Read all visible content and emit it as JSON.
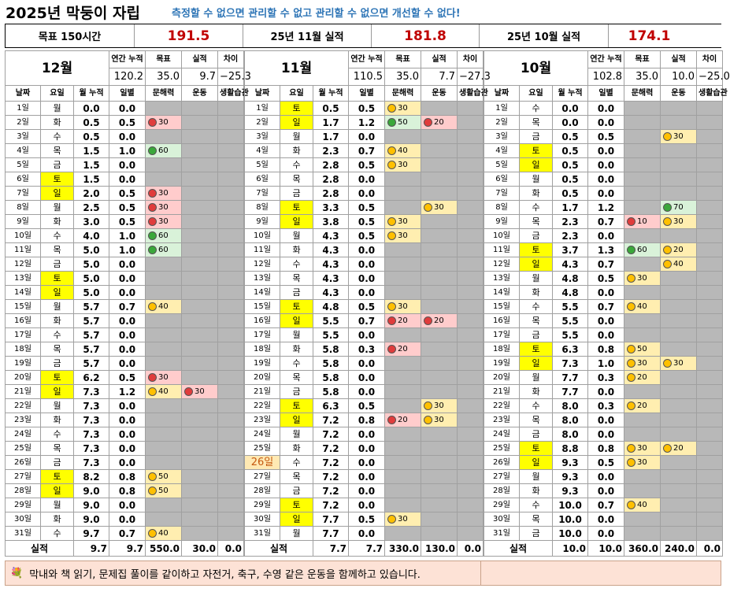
{
  "title": "2025년 막둥이 자립",
  "slogan": "측정할 수 없으면 관리할 수 없고 관리할 수 없으면 개선할 수 없다!",
  "summary": {
    "goal_label": "목표 150시간",
    "goal_value": "191.5",
    "nov_label": "25년 11월 실적",
    "nov_value": "181.8",
    "oct_label": "25년 10월 실적",
    "oct_value": "174.1"
  },
  "headers": {
    "annual": "연간 누적",
    "target": "목표",
    "actual": "실적",
    "diff": "차이",
    "cols": [
      "날짜",
      "요일",
      "월 누적",
      "일별",
      "문해력",
      "운동",
      "생활습관"
    ]
  },
  "footer": {
    "icon": "💐",
    "text": "막내와 책 읽기, 문제집 풀이를 같이하고 자전거, 축구, 수영 같은 운동을 함께하고 있습니다."
  },
  "months": [
    {
      "name": "12월",
      "annual": "120.2",
      "target": "35.0",
      "actual": "9.7",
      "diff": "−25.3",
      "rows": [
        [
          "1일",
          "월",
          "0.0",
          "0.0",
          "",
          ""
        ],
        [
          "2일",
          "화",
          "0.5",
          "0.5",
          "r30",
          ""
        ],
        [
          "3일",
          "수",
          "0.5",
          "0.0",
          "",
          ""
        ],
        [
          "4일",
          "목",
          "1.5",
          "1.0",
          "g60",
          ""
        ],
        [
          "5일",
          "금",
          "1.5",
          "0.0",
          "",
          ""
        ],
        [
          "6일",
          "토",
          "1.5",
          "0.0",
          "",
          ""
        ],
        [
          "7일",
          "일",
          "2.0",
          "0.5",
          "r30",
          ""
        ],
        [
          "8일",
          "월",
          "2.5",
          "0.5",
          "r30",
          ""
        ],
        [
          "9일",
          "화",
          "3.0",
          "0.5",
          "r30",
          ""
        ],
        [
          "10일",
          "수",
          "4.0",
          "1.0",
          "g60",
          ""
        ],
        [
          "11일",
          "목",
          "5.0",
          "1.0",
          "g60",
          ""
        ],
        [
          "12일",
          "금",
          "5.0",
          "0.0",
          "",
          ""
        ],
        [
          "13일",
          "토",
          "5.0",
          "0.0",
          "",
          ""
        ],
        [
          "14일",
          "일",
          "5.0",
          "0.0",
          "",
          ""
        ],
        [
          "15일",
          "월",
          "5.7",
          "0.7",
          "y40",
          ""
        ],
        [
          "16일",
          "화",
          "5.7",
          "0.0",
          "",
          ""
        ],
        [
          "17일",
          "수",
          "5.7",
          "0.0",
          "",
          ""
        ],
        [
          "18일",
          "목",
          "5.7",
          "0.0",
          "",
          ""
        ],
        [
          "19일",
          "금",
          "5.7",
          "0.0",
          "",
          ""
        ],
        [
          "20일",
          "토",
          "6.2",
          "0.5",
          "r30",
          ""
        ],
        [
          "21일",
          "일",
          "7.3",
          "1.2",
          "y40",
          "r30"
        ],
        [
          "22일",
          "월",
          "7.3",
          "0.0",
          "",
          ""
        ],
        [
          "23일",
          "화",
          "7.3",
          "0.0",
          "",
          ""
        ],
        [
          "24일",
          "수",
          "7.3",
          "0.0",
          "",
          ""
        ],
        [
          "25일",
          "목",
          "7.3",
          "0.0",
          "",
          ""
        ],
        [
          "26일",
          "금",
          "7.3",
          "0.0",
          "",
          ""
        ],
        [
          "27일",
          "토",
          "8.2",
          "0.8",
          "y50",
          ""
        ],
        [
          "28일",
          "일",
          "9.0",
          "0.8",
          "y50",
          ""
        ],
        [
          "29일",
          "월",
          "9.0",
          "0.0",
          "",
          ""
        ],
        [
          "30일",
          "화",
          "9.0",
          "0.0",
          "",
          ""
        ],
        [
          "31일",
          "수",
          "9.7",
          "0.7",
          "y40",
          ""
        ]
      ],
      "total": {
        "label": "실적",
        "month": "9.7",
        "daily": "9.7",
        "lit": "550.0",
        "ex": "30.0",
        "habit": "0.0"
      }
    },
    {
      "name": "11월",
      "annual": "110.5",
      "target": "35.0",
      "actual": "7.7",
      "diff": "−27.3",
      "rows": [
        [
          "1일",
          "토",
          "0.5",
          "0.5",
          "y30",
          ""
        ],
        [
          "2일",
          "일",
          "1.7",
          "1.2",
          "g50",
          "r20"
        ],
        [
          "3일",
          "월",
          "1.7",
          "0.0",
          "",
          ""
        ],
        [
          "4일",
          "화",
          "2.3",
          "0.7",
          "y40",
          ""
        ],
        [
          "5일",
          "수",
          "2.8",
          "0.5",
          "y30",
          ""
        ],
        [
          "6일",
          "목",
          "2.8",
          "0.0",
          "",
          ""
        ],
        [
          "7일",
          "금",
          "2.8",
          "0.0",
          "",
          ""
        ],
        [
          "8일",
          "토",
          "3.3",
          "0.5",
          "",
          "y30"
        ],
        [
          "9일",
          "일",
          "3.8",
          "0.5",
          "y30",
          ""
        ],
        [
          "10일",
          "월",
          "4.3",
          "0.5",
          "y30",
          ""
        ],
        [
          "11일",
          "화",
          "4.3",
          "0.0",
          "",
          ""
        ],
        [
          "12일",
          "수",
          "4.3",
          "0.0",
          "",
          ""
        ],
        [
          "13일",
          "목",
          "4.3",
          "0.0",
          "",
          ""
        ],
        [
          "14일",
          "금",
          "4.3",
          "0.0",
          "",
          ""
        ],
        [
          "15일",
          "토",
          "4.8",
          "0.5",
          "y30",
          ""
        ],
        [
          "16일",
          "일",
          "5.5",
          "0.7",
          "r20",
          "r20"
        ],
        [
          "17일",
          "월",
          "5.5",
          "0.0",
          "",
          ""
        ],
        [
          "18일",
          "화",
          "5.8",
          "0.3",
          "r20",
          ""
        ],
        [
          "19일",
          "수",
          "5.8",
          "0.0",
          "",
          ""
        ],
        [
          "20일",
          "목",
          "5.8",
          "0.0",
          "",
          ""
        ],
        [
          "21일",
          "금",
          "5.8",
          "0.0",
          "",
          ""
        ],
        [
          "22일",
          "토",
          "6.3",
          "0.5",
          "",
          "y30"
        ],
        [
          "23일",
          "일",
          "7.2",
          "0.8",
          "r20",
          "y30"
        ],
        [
          "24일",
          "월",
          "7.2",
          "0.0",
          "",
          ""
        ],
        [
          "25일",
          "화",
          "7.2",
          "0.0",
          "",
          ""
        ],
        [
          "26일",
          "수",
          "7.2",
          "0.0",
          "",
          ""
        ],
        [
          "27일",
          "목",
          "7.2",
          "0.0",
          "",
          ""
        ],
        [
          "28일",
          "금",
          "7.2",
          "0.0",
          "",
          ""
        ],
        [
          "29일",
          "토",
          "7.2",
          "0.0",
          "",
          ""
        ],
        [
          "30일",
          "일",
          "7.7",
          "0.5",
          "y30",
          ""
        ],
        [
          "31일",
          "월",
          "7.7",
          "0.0",
          "",
          ""
        ]
      ],
      "total": {
        "label": "실적",
        "month": "7.7",
        "daily": "7.7",
        "lit": "330.0",
        "ex": "130.0",
        "habit": "0.0"
      }
    },
    {
      "name": "10월",
      "annual": "102.8",
      "target": "35.0",
      "actual": "10.0",
      "diff": "−25.0",
      "rows": [
        [
          "1일",
          "수",
          "0.0",
          "0.0",
          "",
          ""
        ],
        [
          "2일",
          "목",
          "0.0",
          "0.0",
          "",
          ""
        ],
        [
          "3일",
          "금",
          "0.5",
          "0.5",
          "",
          "y30"
        ],
        [
          "4일",
          "토",
          "0.5",
          "0.0",
          "",
          ""
        ],
        [
          "5일",
          "일",
          "0.5",
          "0.0",
          "",
          ""
        ],
        [
          "6일",
          "월",
          "0.5",
          "0.0",
          "",
          ""
        ],
        [
          "7일",
          "화",
          "0.5",
          "0.0",
          "",
          ""
        ],
        [
          "8일",
          "수",
          "1.7",
          "1.2",
          "",
          "g70"
        ],
        [
          "9일",
          "목",
          "2.3",
          "0.7",
          "r10",
          "y30"
        ],
        [
          "10일",
          "금",
          "2.3",
          "0.0",
          "",
          ""
        ],
        [
          "11일",
          "토",
          "3.7",
          "1.3",
          "g60",
          "y20"
        ],
        [
          "12일",
          "일",
          "4.3",
          "0.7",
          "",
          "y40"
        ],
        [
          "13일",
          "월",
          "4.8",
          "0.5",
          "y30",
          ""
        ],
        [
          "14일",
          "화",
          "4.8",
          "0.0",
          "",
          ""
        ],
        [
          "15일",
          "수",
          "5.5",
          "0.7",
          "y40",
          ""
        ],
        [
          "16일",
          "목",
          "5.5",
          "0.0",
          "",
          ""
        ],
        [
          "17일",
          "금",
          "5.5",
          "0.0",
          "",
          ""
        ],
        [
          "18일",
          "토",
          "6.3",
          "0.8",
          "y50",
          ""
        ],
        [
          "19일",
          "일",
          "7.3",
          "1.0",
          "y30",
          "y30"
        ],
        [
          "20일",
          "월",
          "7.7",
          "0.3",
          "y20",
          ""
        ],
        [
          "21일",
          "화",
          "7.7",
          "0.0",
          "",
          ""
        ],
        [
          "22일",
          "수",
          "8.0",
          "0.3",
          "y20",
          ""
        ],
        [
          "23일",
          "목",
          "8.0",
          "0.0",
          "",
          ""
        ],
        [
          "24일",
          "금",
          "8.0",
          "0.0",
          "",
          ""
        ],
        [
          "25일",
          "토",
          "8.8",
          "0.8",
          "y30",
          "y20"
        ],
        [
          "26일",
          "일",
          "9.3",
          "0.5",
          "y30",
          ""
        ],
        [
          "27일",
          "월",
          "9.3",
          "0.0",
          "",
          ""
        ],
        [
          "28일",
          "화",
          "9.3",
          "0.0",
          "",
          ""
        ],
        [
          "29일",
          "수",
          "10.0",
          "0.7",
          "y40",
          ""
        ],
        [
          "30일",
          "목",
          "10.0",
          "0.0",
          "",
          ""
        ],
        [
          "31일",
          "금",
          "10.0",
          "0.0",
          "",
          ""
        ]
      ],
      "total": {
        "label": "실적",
        "month": "10.0",
        "daily": "10.0",
        "lit": "360.0",
        "ex": "240.0",
        "habit": "0.0"
      }
    }
  ]
}
